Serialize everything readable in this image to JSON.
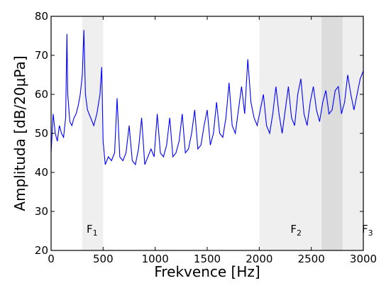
{
  "chart_data": {
    "type": "line",
    "xlabel": "Frekvence [Hz]",
    "ylabel": "Amplituda [dB/20μPa]",
    "xlim": [
      0,
      3000
    ],
    "ylim": [
      20,
      80
    ],
    "x_ticks": [
      "0",
      "500",
      "1000",
      "1500",
      "2000",
      "2500",
      "3000"
    ],
    "y_ticks": [
      "20",
      "30",
      "40",
      "50",
      "60",
      "70",
      "80"
    ],
    "line_color": "#0000ff",
    "grid": false,
    "bands": [
      {
        "label": "F",
        "subscript": "1",
        "x_start": 300,
        "x_end": 500,
        "color": "#efefef"
      },
      {
        "label": "F",
        "subscript": "2",
        "x_start": 2000,
        "x_end": 3000,
        "color": "#efefef"
      },
      {
        "label": "F",
        "subscript": "3",
        "x_start": 2600,
        "x_end": 2800,
        "color": "#dcdcdc"
      }
    ],
    "series": [
      {
        "x": [
          0,
          20,
          40,
          60,
          80,
          100,
          120,
          140,
          152,
          160,
          180,
          200,
          220,
          240,
          260,
          280,
          300,
          315,
          330,
          350,
          380,
          410,
          440,
          470,
          486,
          500,
          520,
          550,
          580,
          610,
          634,
          660,
          690,
          720,
          750,
          780,
          810,
          840,
          870,
          900,
          930,
          960,
          990,
          1020,
          1050,
          1080,
          1110,
          1140,
          1170,
          1200,
          1230,
          1260,
          1290,
          1320,
          1350,
          1380,
          1410,
          1440,
          1470,
          1500,
          1530,
          1560,
          1590,
          1620,
          1650,
          1680,
          1710,
          1740,
          1770,
          1800,
          1830,
          1860,
          1890,
          1920,
          1950,
          1980,
          2010,
          2040,
          2070,
          2100,
          2130,
          2160,
          2190,
          2220,
          2250,
          2280,
          2310,
          2340,
          2370,
          2400,
          2430,
          2460,
          2490,
          2520,
          2550,
          2580,
          2610,
          2640,
          2670,
          2700,
          2730,
          2760,
          2790,
          2820,
          2850,
          2880,
          2910,
          2940,
          2970,
          3000
        ],
        "y": [
          45,
          55,
          50,
          48,
          52,
          50,
          49,
          54,
          75.5,
          60,
          53,
          52,
          54,
          55,
          57,
          60,
          65,
          76.5,
          60,
          56,
          54,
          52,
          55,
          60,
          67,
          48,
          42,
          44,
          43,
          45,
          59,
          44,
          43,
          45,
          52,
          43,
          42,
          46,
          54,
          42,
          44,
          46,
          44,
          55,
          45,
          44,
          47,
          54,
          44,
          45,
          48,
          55,
          45,
          46,
          50,
          56,
          46,
          47,
          52,
          56,
          47,
          50,
          58,
          50,
          49,
          54,
          63,
          52,
          50,
          56,
          62,
          55,
          69,
          58,
          54,
          52,
          56,
          60,
          52,
          50,
          55,
          62,
          55,
          50,
          56,
          62,
          54,
          52,
          60,
          64,
          55,
          52,
          58,
          62,
          56,
          53,
          58,
          61,
          55,
          56,
          61,
          62,
          55,
          58,
          65,
          60,
          56,
          60,
          64,
          66
        ]
      }
    ]
  }
}
